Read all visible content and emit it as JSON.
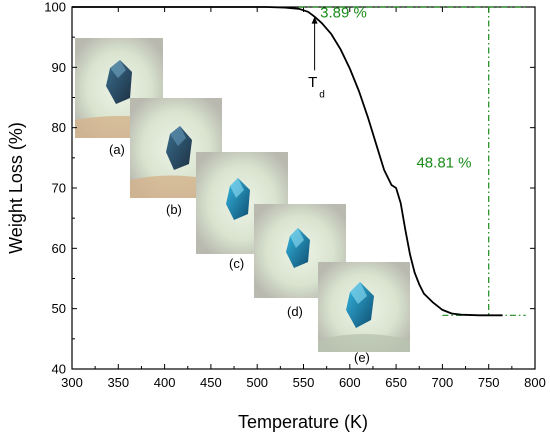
{
  "chart_data": {
    "type": "line",
    "xlabel": "Temperature (K)",
    "ylabel": "Weight Loss (%)",
    "xlim": [
      300,
      800
    ],
    "ylim": [
      40,
      100
    ],
    "xticks": [
      300,
      350,
      400,
      450,
      500,
      550,
      600,
      650,
      700,
      750,
      800
    ],
    "yticks": [
      40,
      50,
      60,
      70,
      80,
      90,
      100
    ],
    "grid": false,
    "series": [
      {
        "color": "#000000",
        "x": [
          510,
          530,
          545,
          555,
          562,
          570,
          580,
          590,
          600,
          610,
          620,
          630,
          637,
          645,
          650,
          655,
          660,
          665,
          670,
          675,
          680,
          690,
          700,
          710,
          720,
          740,
          765
        ],
        "y": [
          100,
          99.9,
          99.7,
          99.2,
          98.4,
          97.3,
          95.5,
          93.0,
          89.8,
          86.0,
          81.5,
          76.5,
          73.0,
          70.5,
          70.0,
          67.5,
          63.0,
          59.0,
          56.0,
          54.0,
          52.5,
          51.0,
          49.8,
          49.2,
          49.0,
          48.9,
          48.9
        ]
      }
    ],
    "flat_start": {
      "x": [
        300,
        510
      ],
      "y": 100
    },
    "annotations": {
      "upper_ref_line": {
        "y": 100,
        "x_from": 545,
        "x_to": 790,
        "color": "#1a8a1a"
      },
      "lower_ref_line": {
        "y": 48.9,
        "x_from": 700,
        "x_to": 790,
        "color": "#1a8a1a"
      },
      "vertical_ref_line": {
        "x": 750,
        "y_from": 48.9,
        "y_to": 100,
        "color": "#1a8a1a"
      },
      "td_arrow": {
        "x": 562,
        "y_from": 89.5,
        "y_to": 98.4
      },
      "label_3_89": "3.89 %",
      "label_48_81": "48.81 %",
      "td_main": "T",
      "td_sub": "d"
    },
    "image_labels": [
      "(a)",
      "(b)",
      "(c)",
      "(d)",
      "(e)"
    ]
  }
}
